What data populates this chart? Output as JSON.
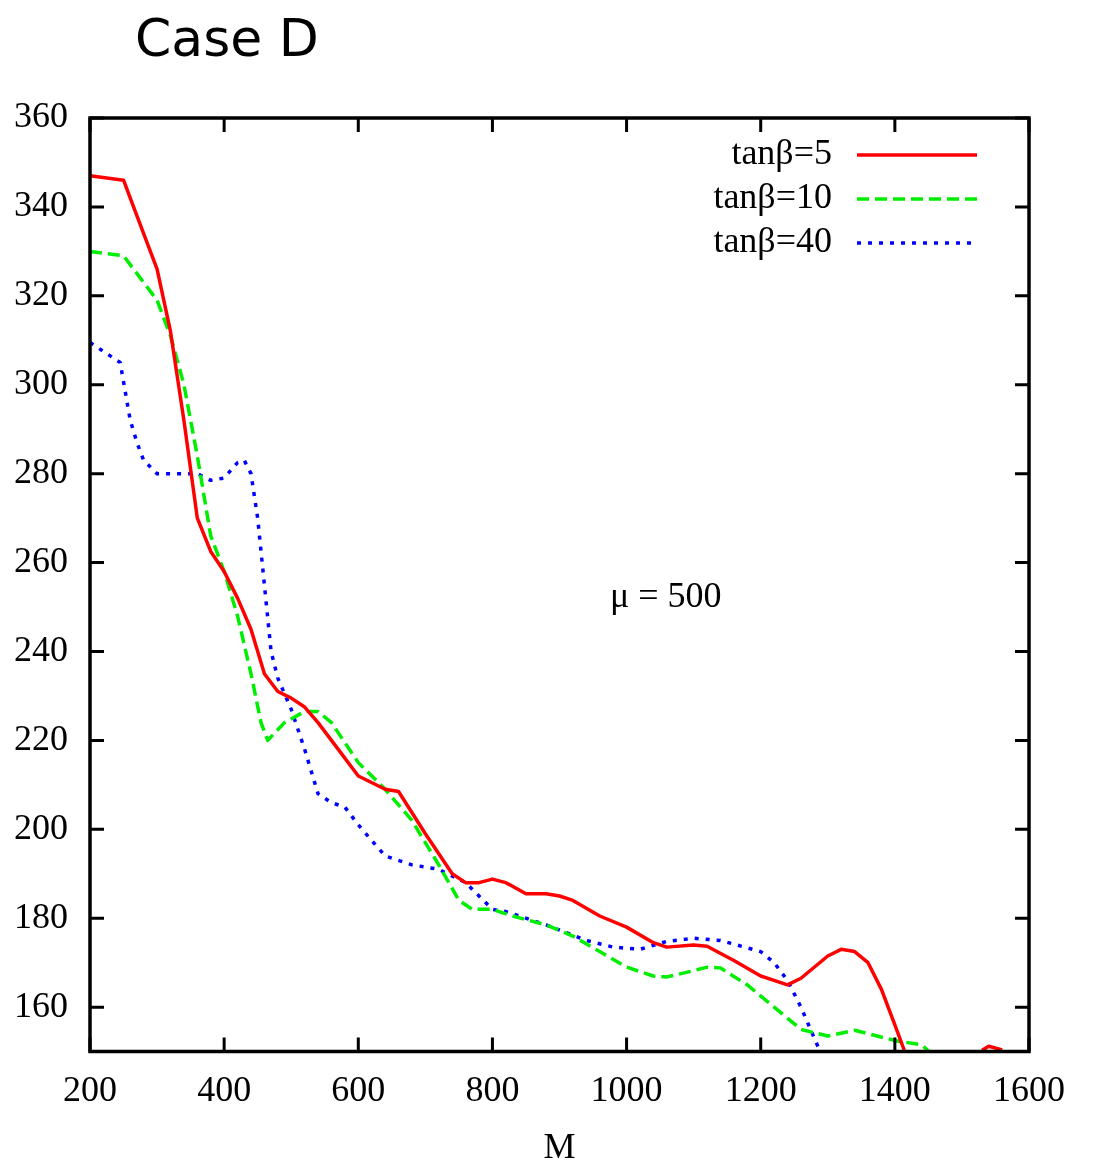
{
  "chart_data": {
    "type": "line",
    "title": "Case D",
    "xlabel": "M",
    "annotations": [
      "μ = 500"
    ],
    "legend": "top right",
    "xlim": [
      200,
      1600
    ],
    "xticks": [
      200,
      400,
      600,
      800,
      1000,
      1200,
      1400,
      1600
    ],
    "ylim": [
      150,
      360
    ],
    "yticks": [
      160,
      180,
      200,
      220,
      240,
      260,
      280,
      300,
      320,
      340,
      360
    ],
    "marker": "none",
    "series": [
      {
        "name": "tanβ=5",
        "color": "#ff0000",
        "line_style": "solid",
        "x": [
          200,
          250,
          270,
          300,
          320,
          340,
          360,
          380,
          400,
          420,
          440,
          460,
          480,
          500,
          520,
          540,
          560,
          600,
          640,
          660,
          700,
          740,
          760,
          780,
          800,
          820,
          850,
          880,
          900,
          920,
          960,
          1000,
          1040,
          1060,
          1100,
          1120,
          1160,
          1200,
          1240,
          1260,
          1300,
          1320,
          1340,
          1360,
          1380,
          1400,
          1414,
          1470,
          1530,
          1540,
          1560
        ],
        "values": [
          347,
          346,
          338,
          326,
          312,
          292,
          270,
          262.5,
          258,
          252,
          245,
          235,
          231,
          229.5,
          227.5,
          224,
          220,
          212,
          209,
          208.5,
          199,
          190,
          188,
          188,
          188.8,
          188,
          185.5,
          185.5,
          185,
          184,
          180.5,
          178,
          174.5,
          173.5,
          174,
          173.7,
          170.5,
          167,
          165,
          166.5,
          171.5,
          173,
          172.5,
          170,
          164,
          156,
          150.3,
          null,
          150.3,
          151.2,
          150.4
        ]
      },
      {
        "name": "tanβ=10",
        "color": "#00ee00",
        "line_style": "dashed",
        "x": [
          200,
          250,
          280,
          300,
          320,
          340,
          360,
          380,
          400,
          420,
          440,
          455,
          465,
          490,
          520,
          540,
          560,
          600,
          640,
          680,
          720,
          750,
          770,
          800,
          830,
          880,
          920,
          960,
          1000,
          1040,
          1060,
          1100,
          1120,
          1140,
          1180,
          1220,
          1260,
          1300,
          1340,
          1400,
          1440,
          1450
        ],
        "values": [
          330,
          329,
          323,
          319,
          311,
          300,
          284,
          266,
          258,
          248,
          235,
          224,
          220,
          224,
          226.5,
          226.5,
          224,
          215,
          209,
          202,
          192,
          184,
          182,
          182,
          180.5,
          178.5,
          176,
          172.5,
          169,
          167,
          166.8,
          168.2,
          169,
          168.8,
          165,
          160,
          155,
          153.5,
          154.8,
          152.5,
          151.5,
          150.2
        ]
      },
      {
        "name": "tanβ=40",
        "color": "#0000ff",
        "line_style": "dotted",
        "x": [
          200,
          245,
          260,
          270,
          280,
          300,
          320,
          360,
          380,
          400,
          420,
          430,
          440,
          450,
          460,
          470,
          480,
          500,
          520,
          540,
          560,
          580,
          600,
          640,
          680,
          720,
          760,
          780,
          800,
          820,
          880,
          940,
          980,
          1020,
          1060,
          1100,
          1140,
          1200,
          1220,
          1240,
          1260,
          1280,
          1288
        ],
        "values": [
          309.5,
          305,
          292,
          287,
          283,
          280,
          280,
          280,
          278.5,
          279,
          282.5,
          283,
          280,
          270,
          255,
          240,
          234,
          227,
          218,
          208,
          206,
          205,
          201,
          194,
          192,
          191,
          188,
          185,
          182,
          181.5,
          178.5,
          175,
          173.5,
          173,
          174.8,
          175.5,
          175,
          172.5,
          170,
          166,
          160,
          153,
          150.2
        ]
      }
    ]
  }
}
